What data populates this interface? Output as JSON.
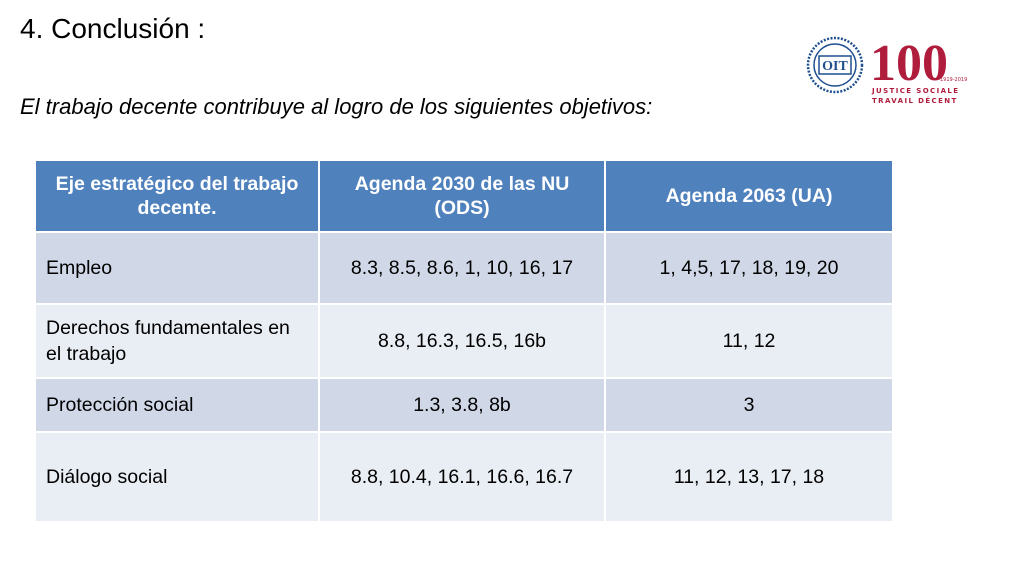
{
  "slide": {
    "title": "4. Conclusión :",
    "subtitle": "El trabajo decente contribuye al logro de los siguientes objetivos:"
  },
  "logos": {
    "ilo": "OIT",
    "centenary_number": "100",
    "centenary_years": "1919-2019",
    "centenary_line1": "JUSTICE SOCIALE",
    "centenary_line2": "TRAVAIL DÉCENT",
    "brand_color": "#b01c3c",
    "ilo_color": "#1f4f8f"
  },
  "table": {
    "header_color": "#4f81bd",
    "headers": [
      "Eje estratégico del trabajo decente.",
      "Agenda 2030 de las NU (ODS)",
      "Agenda 2063 (UA)"
    ],
    "rows": [
      [
        "Empleo",
        "8.3, 8.5, 8.6, 1, 10, 16, 17",
        "1, 4,5, 17, 18, 19, 20"
      ],
      [
        "Derechos fundamentales en el trabajo",
        "8.8, 16.3, 16.5, 16b",
        "11, 12"
      ],
      [
        "Protección social",
        "1.3, 3.8, 8b",
        "3"
      ],
      [
        "Diálogo social",
        "8.8, 10.4, 16.1, 16.6, 16.7",
        "11, 12, 13, 17, 18"
      ]
    ]
  }
}
